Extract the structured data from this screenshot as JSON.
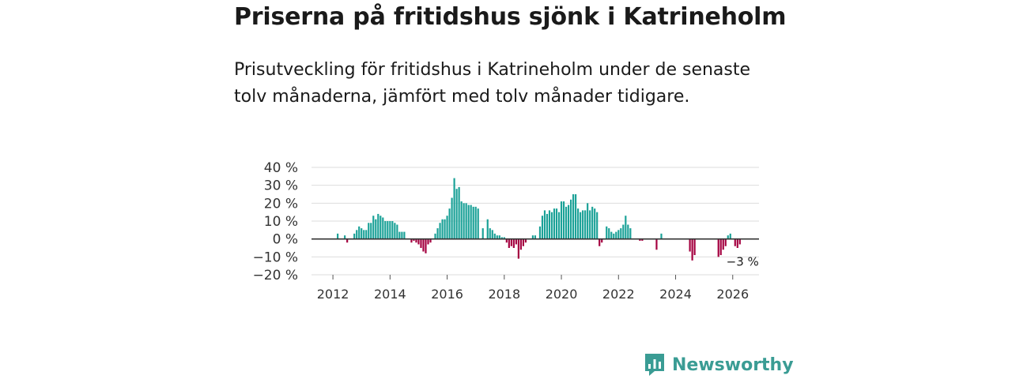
{
  "title": "Priserna på fritidshus sjönk i Katrineholm",
  "subtitle": "Prisutveckling för fritidshus i Katrineholm under de senaste tolv månaderna, jämfört med tolv månader tidigare.",
  "brand": {
    "name": "Newsworthy",
    "icon": "newsworthy-logo-icon"
  },
  "colors": {
    "positive": "#1aa197",
    "negative": "#a4003f",
    "grid": "#dddddd",
    "zero_line": "#333333"
  },
  "chart_data": {
    "type": "bar",
    "title": "",
    "xlabel": "",
    "ylabel": "",
    "ylim": [
      -20,
      40
    ],
    "xlim": [
      2011.25,
      2026.92
    ],
    "y_ticks": [
      {
        "value": 40,
        "label": "40 %"
      },
      {
        "value": 30,
        "label": "30 %"
      },
      {
        "value": 20,
        "label": "20 %"
      },
      {
        "value": 10,
        "label": "10 %"
      },
      {
        "value": 0,
        "label": "0 %"
      },
      {
        "value": -10,
        "label": "−10 %"
      },
      {
        "value": -20,
        "label": "−20 %"
      }
    ],
    "x_ticks": [
      {
        "value": 2012,
        "label": "2012"
      },
      {
        "value": 2014,
        "label": "2014"
      },
      {
        "value": 2016,
        "label": "2016"
      },
      {
        "value": 2018,
        "label": "2018"
      },
      {
        "value": 2020,
        "label": "2020"
      },
      {
        "value": 2022,
        "label": "2022"
      },
      {
        "value": 2024,
        "label": "2024"
      },
      {
        "value": 2026,
        "label": "2026"
      }
    ],
    "grid": true,
    "annotation": {
      "x": "2026-04",
      "value": -3,
      "label": "−3 %"
    },
    "series": [
      {
        "points": [
          {
            "x": "2012-03",
            "value": 3
          },
          {
            "x": "2012-06",
            "value": 2
          },
          {
            "x": "2012-07",
            "value": -2
          },
          {
            "x": "2012-10",
            "value": 3
          },
          {
            "x": "2012-11",
            "value": 5
          },
          {
            "x": "2012-12",
            "value": 7
          },
          {
            "x": "2013-01",
            "value": 6
          },
          {
            "x": "2013-02",
            "value": 5
          },
          {
            "x": "2013-03",
            "value": 5
          },
          {
            "x": "2013-04",
            "value": 9
          },
          {
            "x": "2013-05",
            "value": 9
          },
          {
            "x": "2013-06",
            "value": 13
          },
          {
            "x": "2013-07",
            "value": 11
          },
          {
            "x": "2013-08",
            "value": 14
          },
          {
            "x": "2013-09",
            "value": 13
          },
          {
            "x": "2013-10",
            "value": 12
          },
          {
            "x": "2013-11",
            "value": 10
          },
          {
            "x": "2013-12",
            "value": 10
          },
          {
            "x": "2014-01",
            "value": 10
          },
          {
            "x": "2014-02",
            "value": 10
          },
          {
            "x": "2014-03",
            "value": 9
          },
          {
            "x": "2014-04",
            "value": 8
          },
          {
            "x": "2014-05",
            "value": 4
          },
          {
            "x": "2014-06",
            "value": 4
          },
          {
            "x": "2014-07",
            "value": 4
          },
          {
            "x": "2014-10",
            "value": -2
          },
          {
            "x": "2014-11",
            "value": -1
          },
          {
            "x": "2014-12",
            "value": -2
          },
          {
            "x": "2015-01",
            "value": -3
          },
          {
            "x": "2015-02",
            "value": -5
          },
          {
            "x": "2015-03",
            "value": -7
          },
          {
            "x": "2015-04",
            "value": -8
          },
          {
            "x": "2015-05",
            "value": -3
          },
          {
            "x": "2015-06",
            "value": -2
          },
          {
            "x": "2015-08",
            "value": 3
          },
          {
            "x": "2015-09",
            "value": 6
          },
          {
            "x": "2015-10",
            "value": 9
          },
          {
            "x": "2015-11",
            "value": 11
          },
          {
            "x": "2015-12",
            "value": 11
          },
          {
            "x": "2016-01",
            "value": 13
          },
          {
            "x": "2016-02",
            "value": 17
          },
          {
            "x": "2016-03",
            "value": 23
          },
          {
            "x": "2016-04",
            "value": 34
          },
          {
            "x": "2016-05",
            "value": 28
          },
          {
            "x": "2016-06",
            "value": 29
          },
          {
            "x": "2016-07",
            "value": 21
          },
          {
            "x": "2016-08",
            "value": 20
          },
          {
            "x": "2016-09",
            "value": 20
          },
          {
            "x": "2016-10",
            "value": 19
          },
          {
            "x": "2016-11",
            "value": 19
          },
          {
            "x": "2016-12",
            "value": 18
          },
          {
            "x": "2017-01",
            "value": 18
          },
          {
            "x": "2017-02",
            "value": 17
          },
          {
            "x": "2017-04",
            "value": 6
          },
          {
            "x": "2017-06",
            "value": 11
          },
          {
            "x": "2017-07",
            "value": 6
          },
          {
            "x": "2017-08",
            "value": 5
          },
          {
            "x": "2017-09",
            "value": 3
          },
          {
            "x": "2017-10",
            "value": 2
          },
          {
            "x": "2017-11",
            "value": 2
          },
          {
            "x": "2017-12",
            "value": 1
          },
          {
            "x": "2018-01",
            "value": 1
          },
          {
            "x": "2018-02",
            "value": -2
          },
          {
            "x": "2018-03",
            "value": -5
          },
          {
            "x": "2018-04",
            "value": -4
          },
          {
            "x": "2018-05",
            "value": -5
          },
          {
            "x": "2018-06",
            "value": -3
          },
          {
            "x": "2018-07",
            "value": -11
          },
          {
            "x": "2018-08",
            "value": -6
          },
          {
            "x": "2018-09",
            "value": -4
          },
          {
            "x": "2018-10",
            "value": -2
          },
          {
            "x": "2019-01",
            "value": 2
          },
          {
            "x": "2019-02",
            "value": 2
          },
          {
            "x": "2019-04",
            "value": 7
          },
          {
            "x": "2019-05",
            "value": 13
          },
          {
            "x": "2019-06",
            "value": 16
          },
          {
            "x": "2019-07",
            "value": 14
          },
          {
            "x": "2019-08",
            "value": 16
          },
          {
            "x": "2019-09",
            "value": 15
          },
          {
            "x": "2019-10",
            "value": 17
          },
          {
            "x": "2019-11",
            "value": 17
          },
          {
            "x": "2019-12",
            "value": 15
          },
          {
            "x": "2020-01",
            "value": 21
          },
          {
            "x": "2020-02",
            "value": 21
          },
          {
            "x": "2020-03",
            "value": 18
          },
          {
            "x": "2020-04",
            "value": 19
          },
          {
            "x": "2020-05",
            "value": 22
          },
          {
            "x": "2020-06",
            "value": 25
          },
          {
            "x": "2020-07",
            "value": 25
          },
          {
            "x": "2020-08",
            "value": 17
          },
          {
            "x": "2020-09",
            "value": 15
          },
          {
            "x": "2020-10",
            "value": 16
          },
          {
            "x": "2020-11",
            "value": 16
          },
          {
            "x": "2020-12",
            "value": 20
          },
          {
            "x": "2021-01",
            "value": 16
          },
          {
            "x": "2021-02",
            "value": 18
          },
          {
            "x": "2021-03",
            "value": 17
          },
          {
            "x": "2021-04",
            "value": 15
          },
          {
            "x": "2021-05",
            "value": -4
          },
          {
            "x": "2021-06",
            "value": -2
          },
          {
            "x": "2021-08",
            "value": 7
          },
          {
            "x": "2021-09",
            "value": 6
          },
          {
            "x": "2021-10",
            "value": 4
          },
          {
            "x": "2021-11",
            "value": 3
          },
          {
            "x": "2021-12",
            "value": 4
          },
          {
            "x": "2022-01",
            "value": 5
          },
          {
            "x": "2022-02",
            "value": 6
          },
          {
            "x": "2022-03",
            "value": 8
          },
          {
            "x": "2022-04",
            "value": 13
          },
          {
            "x": "2022-05",
            "value": 8
          },
          {
            "x": "2022-06",
            "value": 6
          },
          {
            "x": "2022-10",
            "value": -1
          },
          {
            "x": "2022-11",
            "value": -1
          },
          {
            "x": "2023-05",
            "value": -6
          },
          {
            "x": "2023-07",
            "value": 3
          },
          {
            "x": "2024-07",
            "value": -7
          },
          {
            "x": "2024-08",
            "value": -12
          },
          {
            "x": "2024-09",
            "value": -9
          },
          {
            "x": "2025-07",
            "value": -10
          },
          {
            "x": "2025-08",
            "value": -9
          },
          {
            "x": "2025-09",
            "value": -6
          },
          {
            "x": "2025-10",
            "value": -4
          },
          {
            "x": "2025-11",
            "value": 2
          },
          {
            "x": "2025-12",
            "value": 3
          },
          {
            "x": "2026-02",
            "value": -4
          },
          {
            "x": "2026-03",
            "value": -5
          },
          {
            "x": "2026-04",
            "value": -3
          }
        ]
      }
    ]
  }
}
